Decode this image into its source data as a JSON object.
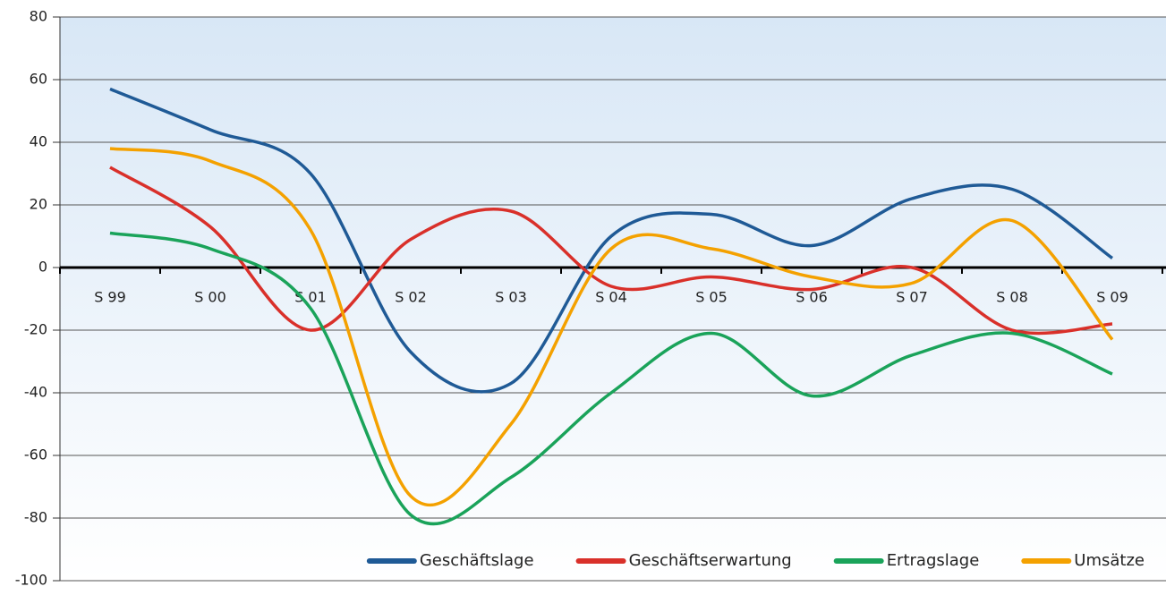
{
  "chart_data": {
    "type": "line",
    "categories": [
      "S 99",
      "S 00",
      "S 01",
      "S 02",
      "S 03",
      "S 04",
      "S 05",
      "S 06",
      "S 07",
      "S 08",
      "S 09"
    ],
    "series": [
      {
        "name": "Geschäftslage",
        "color": "#1f5a96",
        "values": [
          57,
          44,
          30,
          -27,
          -37,
          10,
          17,
          7,
          22,
          25,
          3
        ]
      },
      {
        "name": "Geschäftserwartung",
        "color": "#d9302a",
        "values": [
          32,
          13,
          -20,
          9,
          18,
          -6,
          -3,
          -7,
          0,
          -20,
          -18
        ]
      },
      {
        "name": "Ertragslage",
        "color": "#1aa35a",
        "values": [
          11,
          6,
          -13,
          -79,
          -67,
          -40,
          -21,
          -41,
          -28,
          -21,
          -34
        ]
      },
      {
        "name": "Umsätze",
        "color": "#f4a100",
        "values": [
          38,
          34,
          12,
          -73,
          -50,
          6,
          6,
          -3,
          -5,
          15,
          -23
        ]
      }
    ],
    "ylim": [
      -100,
      80
    ],
    "yticks": [
      -100,
      -80,
      -60,
      -40,
      -20,
      0,
      20,
      40,
      60,
      80
    ],
    "grid": true,
    "legend": "lower right"
  }
}
